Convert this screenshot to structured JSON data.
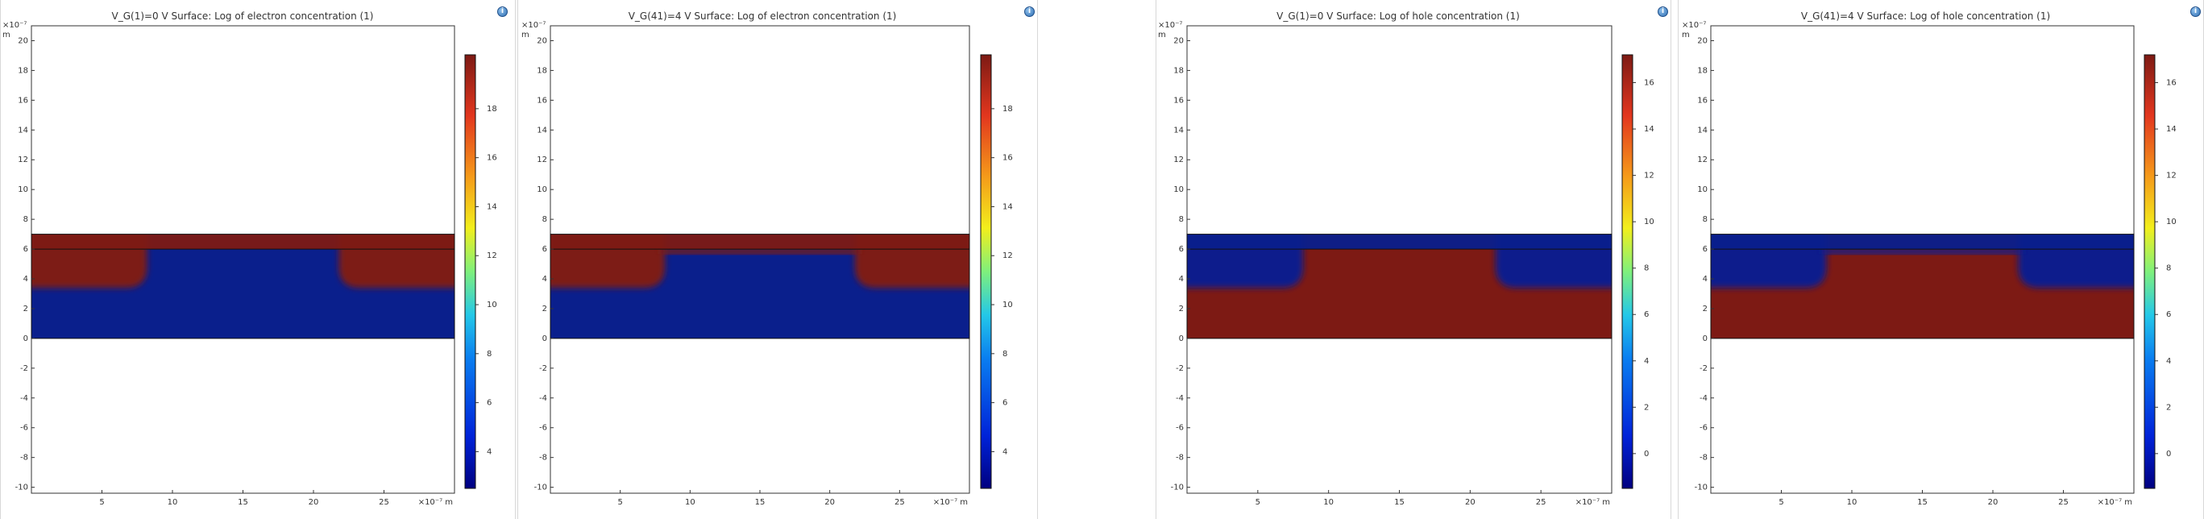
{
  "panels": [
    {
      "title": "V_G(1)=0 V  Surface: Log of electron concentration (1)",
      "carrier": "electron",
      "gate_bias_V": 0,
      "colorbar_ticks": [
        "4",
        "6",
        "8",
        "10",
        "12",
        "14",
        "16",
        "18"
      ],
      "cb_min": 2.5,
      "cb_max": 20.2,
      "y_exp_label": "×10⁻⁷",
      "y_unit": "m",
      "x_exp_label": "×10⁻⁷ m"
    },
    {
      "title": "V_G(41)=4 V  Surface: Log of electron concentration (1)",
      "carrier": "electron",
      "gate_bias_V": 4,
      "colorbar_ticks": [
        "4",
        "6",
        "8",
        "10",
        "12",
        "14",
        "16",
        "18"
      ],
      "cb_min": 2.5,
      "cb_max": 20.2,
      "y_exp_label": "×10⁻⁷",
      "y_unit": "m",
      "x_exp_label": "×10⁻⁷ m"
    },
    {
      "title": "V_G(1)=0 V  Surface: Log of hole concentration (1)",
      "carrier": "hole",
      "gate_bias_V": 0,
      "colorbar_ticks": [
        "0",
        "2",
        "4",
        "6",
        "8",
        "10",
        "12",
        "14",
        "16"
      ],
      "cb_min": -1.5,
      "cb_max": 17.2,
      "y_exp_label": "×10⁻⁷",
      "y_unit": "m",
      "x_exp_label": "×10⁻⁷ m"
    },
    {
      "title": "V_G(41)=4 V  Surface: Log of hole concentration (1)",
      "carrier": "hole",
      "gate_bias_V": 4,
      "colorbar_ticks": [
        "0",
        "2",
        "4",
        "6",
        "8",
        "10",
        "12",
        "14",
        "16"
      ],
      "cb_min": -1.5,
      "cb_max": 17.2,
      "y_exp_label": "×10⁻⁷",
      "y_unit": "m",
      "x_exp_label": "×10⁻⁷ m"
    }
  ],
  "axes": {
    "x_ticks": [
      "5",
      "10",
      "15",
      "20",
      "25"
    ],
    "y_ticks": [
      "-10",
      "-8",
      "-6",
      "-4",
      "-2",
      "0",
      "2",
      "4",
      "6",
      "8",
      "10",
      "12",
      "14",
      "16",
      "18",
      "20"
    ],
    "x_range": [
      0,
      30
    ],
    "y_range": [
      -10.4,
      21.0
    ]
  },
  "device": {
    "x_extent": [
      0,
      30
    ],
    "y_extent": [
      0,
      7
    ],
    "oxide_interface_y": 6.0,
    "junction_depth_y": 3.4,
    "junction_x": [
      8.2,
      21.8
    ]
  },
  "colors": {
    "jet_low": "#0a1f8c",
    "jet_high": "#7d1a14",
    "frame": "#333333",
    "info_icon": "#2f6fb3"
  },
  "icons": {
    "info": "info-icon"
  }
}
